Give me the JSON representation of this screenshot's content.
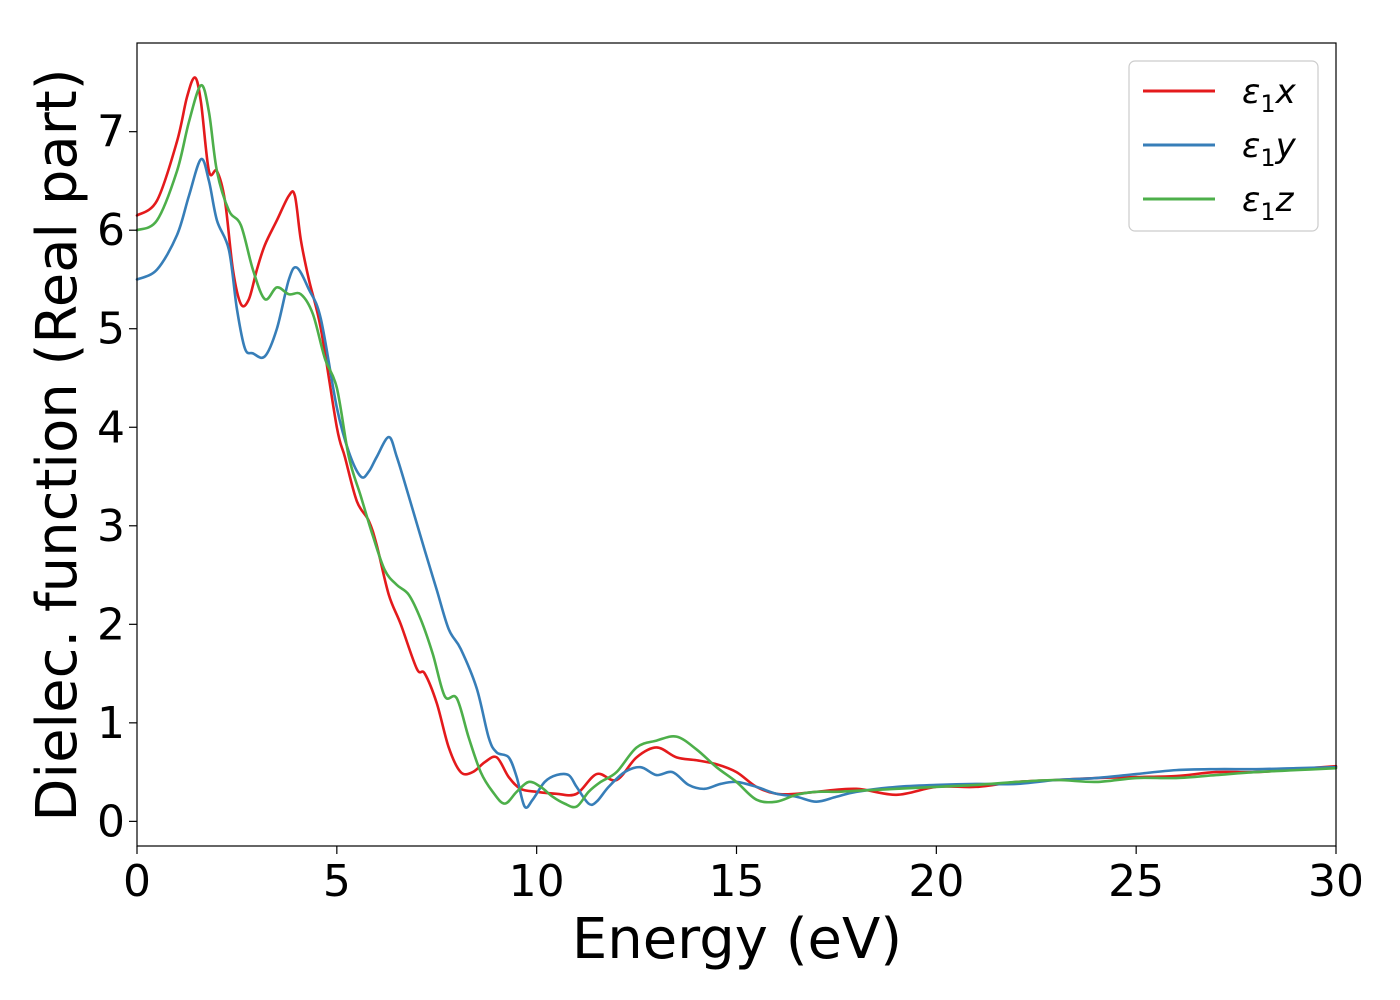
{
  "chart_data": {
    "type": "line",
    "xlabel": "Energy (eV)",
    "ylabel": "Dielec. function (Real part)",
    "xlim": [
      0,
      30
    ],
    "ylim": [
      -0.25,
      7.9
    ],
    "xticks": [
      0,
      5,
      10,
      15,
      20,
      25,
      30
    ],
    "yticks": [
      0,
      1,
      2,
      3,
      4,
      5,
      6,
      7
    ],
    "grid": false,
    "legend_position": "top-right",
    "series": [
      {
        "name": "ε1x",
        "legend_base": "ε",
        "legend_sub": "1",
        "legend_axis": "x",
        "color": "#e41a1c",
        "x": [
          0,
          0.5,
          1.0,
          1.25,
          1.45,
          1.6,
          1.8,
          2.0,
          2.2,
          2.4,
          2.6,
          2.8,
          3.0,
          3.2,
          3.5,
          3.8,
          3.95,
          4.1,
          4.3,
          4.6,
          5.0,
          5.2,
          5.5,
          5.8,
          6.0,
          6.3,
          6.6,
          7.0,
          7.2,
          7.5,
          7.8,
          8.1,
          8.4,
          8.7,
          9.0,
          9.3,
          9.6,
          10.0,
          10.5,
          11.0,
          11.5,
          12.0,
          12.5,
          13.0,
          13.5,
          14.0,
          14.5,
          15.0,
          15.5,
          16.0,
          16.5,
          17.0,
          18.0,
          19.0,
          20.0,
          21.0,
          22.0,
          23.0,
          24.0,
          25.0,
          26.0,
          27.0,
          28.0,
          29.0,
          30.0
        ],
        "values": [
          6.15,
          6.3,
          6.9,
          7.35,
          7.55,
          7.3,
          6.6,
          6.6,
          6.3,
          5.6,
          5.25,
          5.3,
          5.6,
          5.85,
          6.1,
          6.35,
          6.35,
          5.9,
          5.5,
          5.0,
          4.0,
          3.7,
          3.25,
          3.05,
          2.8,
          2.3,
          2.0,
          1.55,
          1.5,
          1.2,
          0.75,
          0.5,
          0.5,
          0.6,
          0.65,
          0.45,
          0.33,
          0.3,
          0.28,
          0.28,
          0.48,
          0.42,
          0.65,
          0.75,
          0.65,
          0.62,
          0.58,
          0.5,
          0.35,
          0.28,
          0.28,
          0.3,
          0.33,
          0.27,
          0.35,
          0.35,
          0.4,
          0.42,
          0.44,
          0.45,
          0.46,
          0.5,
          0.5,
          0.53,
          0.56
        ]
      },
      {
        "name": "ε1y",
        "legend_base": "ε",
        "legend_sub": "1",
        "legend_axis": "y",
        "color": "#377eb8",
        "x": [
          0,
          0.5,
          1.0,
          1.3,
          1.6,
          1.8,
          2.0,
          2.3,
          2.5,
          2.7,
          2.9,
          3.2,
          3.5,
          3.8,
          4.0,
          4.3,
          4.6,
          5.0,
          5.3,
          5.6,
          5.8,
          6.0,
          6.3,
          6.5,
          6.8,
          7.2,
          7.5,
          7.8,
          8.1,
          8.5,
          8.8,
          9.0,
          9.3,
          9.5,
          9.7,
          9.9,
          10.2,
          10.5,
          10.8,
          11.0,
          11.3,
          11.5,
          11.8,
          12.2,
          12.6,
          13.0,
          13.4,
          13.8,
          14.2,
          14.6,
          15.0,
          15.5,
          16.0,
          16.5,
          17.0,
          17.5,
          18.0,
          19.0,
          20.0,
          21.0,
          22.0,
          23.0,
          24.0,
          25.0,
          26.0,
          27.0,
          28.0,
          29.0,
          30.0
        ],
        "values": [
          5.5,
          5.6,
          5.95,
          6.35,
          6.72,
          6.5,
          6.1,
          5.8,
          5.2,
          4.8,
          4.75,
          4.72,
          5.0,
          5.5,
          5.62,
          5.4,
          5.1,
          4.2,
          3.75,
          3.5,
          3.55,
          3.7,
          3.9,
          3.7,
          3.3,
          2.75,
          2.35,
          1.95,
          1.75,
          1.35,
          0.85,
          0.7,
          0.65,
          0.45,
          0.15,
          0.22,
          0.4,
          0.47,
          0.47,
          0.35,
          0.18,
          0.2,
          0.35,
          0.5,
          0.55,
          0.47,
          0.5,
          0.37,
          0.33,
          0.38,
          0.4,
          0.35,
          0.28,
          0.25,
          0.2,
          0.25,
          0.3,
          0.35,
          0.37,
          0.38,
          0.38,
          0.42,
          0.44,
          0.48,
          0.52,
          0.53,
          0.53,
          0.54,
          0.55
        ]
      },
      {
        "name": "ε1z",
        "legend_base": "ε",
        "legend_sub": "1",
        "legend_axis": "z",
        "color": "#4daf4a",
        "x": [
          0,
          0.5,
          1.0,
          1.3,
          1.6,
          1.8,
          2.0,
          2.3,
          2.6,
          2.9,
          3.2,
          3.5,
          3.8,
          4.1,
          4.4,
          4.7,
          5.0,
          5.3,
          5.6,
          5.9,
          6.2,
          6.5,
          6.8,
          7.1,
          7.4,
          7.7,
          8.0,
          8.3,
          8.6,
          8.9,
          9.2,
          9.5,
          9.8,
          10.1,
          10.4,
          10.7,
          11.0,
          11.3,
          11.6,
          12.0,
          12.5,
          13.0,
          13.5,
          14.0,
          14.5,
          15.0,
          15.5,
          16.0,
          16.5,
          17.0,
          17.5,
          18.0,
          19.0,
          20.0,
          21.0,
          22.0,
          23.0,
          24.0,
          25.0,
          26.0,
          27.0,
          28.0,
          29.0,
          30.0
        ],
        "values": [
          6.0,
          6.1,
          6.6,
          7.1,
          7.47,
          7.2,
          6.6,
          6.2,
          6.05,
          5.6,
          5.3,
          5.42,
          5.35,
          5.35,
          5.15,
          4.7,
          4.4,
          3.7,
          3.3,
          2.9,
          2.55,
          2.4,
          2.3,
          2.05,
          1.7,
          1.27,
          1.25,
          0.85,
          0.5,
          0.3,
          0.18,
          0.3,
          0.4,
          0.35,
          0.25,
          0.18,
          0.15,
          0.3,
          0.4,
          0.5,
          0.75,
          0.82,
          0.86,
          0.73,
          0.55,
          0.4,
          0.22,
          0.2,
          0.27,
          0.3,
          0.3,
          0.31,
          0.33,
          0.35,
          0.37,
          0.4,
          0.42,
          0.4,
          0.44,
          0.44,
          0.47,
          0.5,
          0.52,
          0.54
        ]
      }
    ]
  }
}
